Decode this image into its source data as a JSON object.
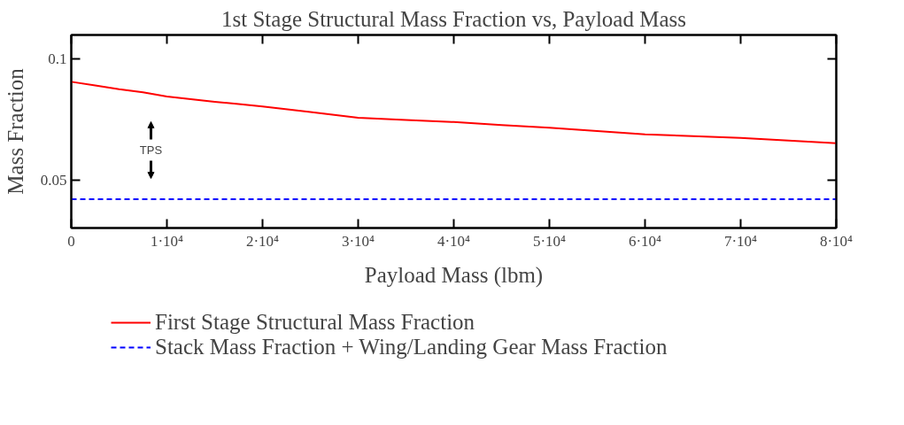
{
  "chart_data": {
    "type": "line",
    "title": "1st Stage Structural Mass Fraction vs, Payload Mass",
    "xlabel": "Payload Mass (lbm)",
    "ylabel": "Mass Fraction",
    "series": [
      {
        "name": "First Stage Structural Mass Fraction",
        "color": "#ff0000",
        "line_style": "solid",
        "x": [
          0,
          2500,
          5000,
          7500,
          10000,
          12500,
          15000,
          17500,
          20000,
          25000,
          30000,
          35000,
          40000,
          45000,
          50000,
          55000,
          60000,
          65000,
          70000,
          75000,
          80000
        ],
        "values": [
          0.0906,
          0.0891,
          0.0875,
          0.0862,
          0.0845,
          0.0834,
          0.0823,
          0.0814,
          0.0804,
          0.0781,
          0.0757,
          0.0748,
          0.0739,
          0.0727,
          0.0716,
          0.0702,
          0.0688,
          0.0681,
          0.0673,
          0.0662,
          0.0651
        ]
      },
      {
        "name": "Stack Mass Fraction + Wing/Landing Gear Mass Fraction",
        "color": "#0000ff",
        "line_style": "dashed",
        "x": [
          0,
          80000
        ],
        "values": [
          0.0419,
          0.0419
        ]
      }
    ],
    "xlim": [
      0,
      80000
    ],
    "ylim": [
      0.03,
      0.11
    ],
    "xticks": [
      0,
      {
        "value": 10000,
        "label": "1·10⁴"
      },
      {
        "value": 20000,
        "label": "2·10⁴"
      },
      {
        "value": 30000,
        "label": "3·10⁴"
      },
      {
        "value": 40000,
        "label": "4·10⁴"
      },
      {
        "value": 50000,
        "label": "5·10⁴"
      },
      {
        "value": 60000,
        "label": "6·10⁴"
      },
      {
        "value": 70000,
        "label": "7·10⁴"
      },
      {
        "value": 80000,
        "label": "8·10⁴"
      }
    ],
    "yticks": [
      0.05,
      0.1
    ],
    "annotations": [
      "TPS"
    ],
    "grid": false,
    "legend": "bottom",
    "marker": "none"
  }
}
